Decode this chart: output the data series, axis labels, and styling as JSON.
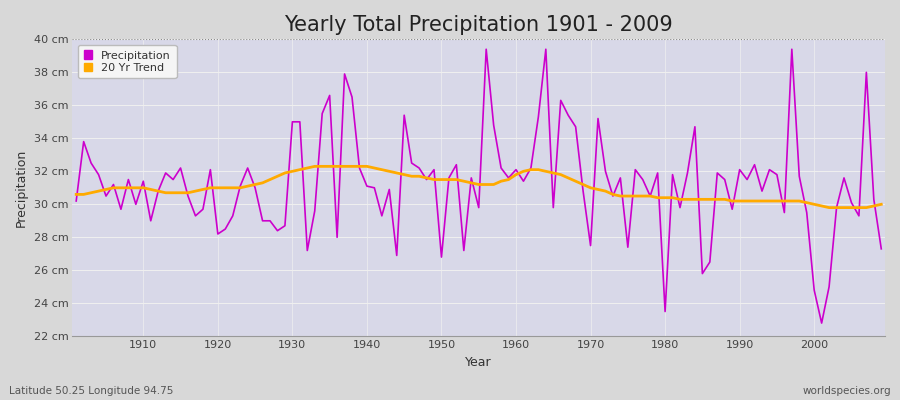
{
  "title": "Yearly Total Precipitation 1901 - 2009",
  "xlabel": "Year",
  "ylabel": "Precipitation",
  "subtitle_left": "Latitude 50.25 Longitude 94.75",
  "subtitle_right": "worldspecies.org",
  "years": [
    1901,
    1902,
    1903,
    1904,
    1905,
    1906,
    1907,
    1908,
    1909,
    1910,
    1911,
    1912,
    1913,
    1914,
    1915,
    1916,
    1917,
    1918,
    1919,
    1920,
    1921,
    1922,
    1923,
    1924,
    1925,
    1926,
    1927,
    1928,
    1929,
    1930,
    1931,
    1932,
    1933,
    1934,
    1935,
    1936,
    1937,
    1938,
    1939,
    1940,
    1941,
    1942,
    1943,
    1944,
    1945,
    1946,
    1947,
    1948,
    1949,
    1950,
    1951,
    1952,
    1953,
    1954,
    1955,
    1956,
    1957,
    1958,
    1959,
    1960,
    1961,
    1962,
    1963,
    1964,
    1965,
    1966,
    1967,
    1968,
    1969,
    1970,
    1971,
    1972,
    1973,
    1974,
    1975,
    1976,
    1977,
    1978,
    1979,
    1980,
    1981,
    1982,
    1983,
    1984,
    1985,
    1986,
    1987,
    1988,
    1989,
    1990,
    1991,
    1992,
    1993,
    1994,
    1995,
    1996,
    1997,
    1998,
    1999,
    2000,
    2001,
    2002,
    2003,
    2004,
    2005,
    2006,
    2007,
    2008,
    2009
  ],
  "precip": [
    30.2,
    33.8,
    32.5,
    31.8,
    30.5,
    31.2,
    29.7,
    31.5,
    30.0,
    31.4,
    29.0,
    30.8,
    31.9,
    31.5,
    32.2,
    30.5,
    29.3,
    29.7,
    32.1,
    28.2,
    28.5,
    29.3,
    31.1,
    32.2,
    31.0,
    29.0,
    29.0,
    28.4,
    28.7,
    35.0,
    35.0,
    27.2,
    29.6,
    35.5,
    36.6,
    28.0,
    37.9,
    36.5,
    32.2,
    31.1,
    31.0,
    29.3,
    30.9,
    26.9,
    35.4,
    32.5,
    32.2,
    31.5,
    32.1,
    26.8,
    31.6,
    32.4,
    27.2,
    31.6,
    29.8,
    39.4,
    34.8,
    32.2,
    31.6,
    32.1,
    31.4,
    32.2,
    35.3,
    39.4,
    29.8,
    36.3,
    35.4,
    34.7,
    30.8,
    27.5,
    35.2,
    32.0,
    30.5,
    31.6,
    27.4,
    32.1,
    31.5,
    30.5,
    31.9,
    23.5,
    31.8,
    29.8,
    31.9,
    34.7,
    25.8,
    26.5,
    31.9,
    31.5,
    29.7,
    32.1,
    31.5,
    32.4,
    30.8,
    32.1,
    31.8,
    29.5,
    39.4,
    31.7,
    29.5,
    24.8,
    22.8,
    25.0,
    29.8,
    31.6,
    30.1,
    29.3,
    38.0,
    30.3,
    27.3
  ],
  "trend": [
    30.6,
    30.6,
    30.7,
    30.8,
    30.9,
    31.0,
    31.0,
    31.0,
    31.0,
    31.0,
    30.9,
    30.8,
    30.7,
    30.7,
    30.7,
    30.7,
    30.8,
    30.9,
    31.0,
    31.0,
    31.0,
    31.0,
    31.0,
    31.1,
    31.2,
    31.3,
    31.5,
    31.7,
    31.9,
    32.0,
    32.1,
    32.2,
    32.3,
    32.3,
    32.3,
    32.3,
    32.3,
    32.3,
    32.3,
    32.3,
    32.2,
    32.1,
    32.0,
    31.9,
    31.8,
    31.7,
    31.7,
    31.6,
    31.5,
    31.5,
    31.5,
    31.5,
    31.4,
    31.3,
    31.2,
    31.2,
    31.2,
    31.4,
    31.5,
    31.8,
    32.0,
    32.1,
    32.1,
    32.0,
    31.9,
    31.8,
    31.6,
    31.4,
    31.2,
    31.0,
    30.9,
    30.8,
    30.6,
    30.5,
    30.5,
    30.5,
    30.5,
    30.5,
    30.4,
    30.4,
    30.4,
    30.3,
    30.3,
    30.3,
    30.3,
    30.3,
    30.3,
    30.3,
    30.2,
    30.2,
    30.2,
    30.2,
    30.2,
    30.2,
    30.2,
    30.2,
    30.2,
    30.2,
    30.1,
    30.0,
    29.9,
    29.8,
    29.8,
    29.8,
    29.8,
    29.8,
    29.8,
    29.9,
    30.0
  ],
  "precip_color": "#cc00cc",
  "trend_color": "#ffaa00",
  "fig_bg_color": "#d8d8d8",
  "plot_bg_color": "#d8d8e8",
  "grid_color": "#f0f0f0",
  "ylim": [
    22,
    40
  ],
  "yticks": [
    22,
    24,
    26,
    28,
    30,
    32,
    34,
    36,
    38,
    40
  ],
  "xlim_min": 1901,
  "xlim_max": 2009,
  "xticks": [
    1910,
    1920,
    1930,
    1940,
    1950,
    1960,
    1970,
    1980,
    1990,
    2000
  ],
  "title_fontsize": 15,
  "axis_label_fontsize": 9,
  "tick_fontsize": 8,
  "legend_fontsize": 8,
  "annotation_fontsize": 7.5
}
